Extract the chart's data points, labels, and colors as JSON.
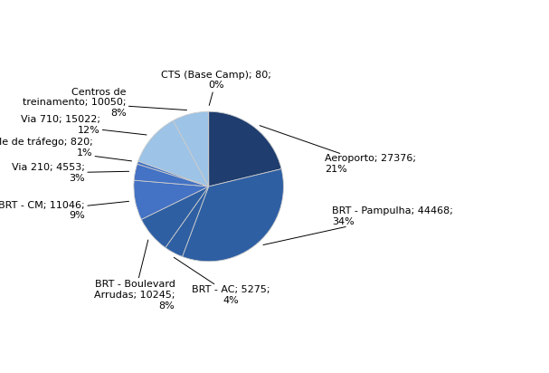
{
  "labels": [
    "Aeroporto",
    "BRT - Pampulha",
    "BRT - AC",
    "BRT - Boulevard\nArrudas",
    "BRT - CM",
    "Via 210",
    "Controle de tráfego",
    "Via 710",
    "Centros de\ntreinamento",
    "CTS (Base Camp)"
  ],
  "values": [
    27376,
    44468,
    5275,
    10245,
    11046,
    4553,
    820,
    15022,
    10050,
    80
  ],
  "percentages": [
    "21%",
    "34%",
    "4%",
    "8%",
    "9%",
    "3%",
    "1%",
    "12%",
    "8%",
    "0%"
  ],
  "colors": [
    "#1F3D6E",
    "#2E5FA3",
    "#2E5FA3",
    "#2E5FA3",
    "#4472C4",
    "#4472C4",
    "#4472C4",
    "#9DC3E6",
    "#9DC3E6",
    "#BDD7EE"
  ],
  "figsize": [
    6.07,
    4.12
  ],
  "dpi": 100,
  "label_specs": [
    [
      0,
      1.55,
      0.3,
      "left",
      "center"
    ],
    [
      1,
      1.65,
      -0.4,
      "left",
      "center"
    ],
    [
      2,
      0.3,
      -1.45,
      "center",
      "center"
    ],
    [
      3,
      -0.45,
      -1.45,
      "right",
      "center"
    ],
    [
      4,
      -1.65,
      -0.32,
      "right",
      "center"
    ],
    [
      5,
      -1.65,
      0.18,
      "right",
      "center"
    ],
    [
      6,
      -1.55,
      0.52,
      "right",
      "center"
    ],
    [
      7,
      -1.45,
      0.82,
      "right",
      "center"
    ],
    [
      8,
      -1.1,
      1.12,
      "right",
      "center"
    ],
    [
      9,
      0.1,
      1.42,
      "center",
      "center"
    ]
  ]
}
